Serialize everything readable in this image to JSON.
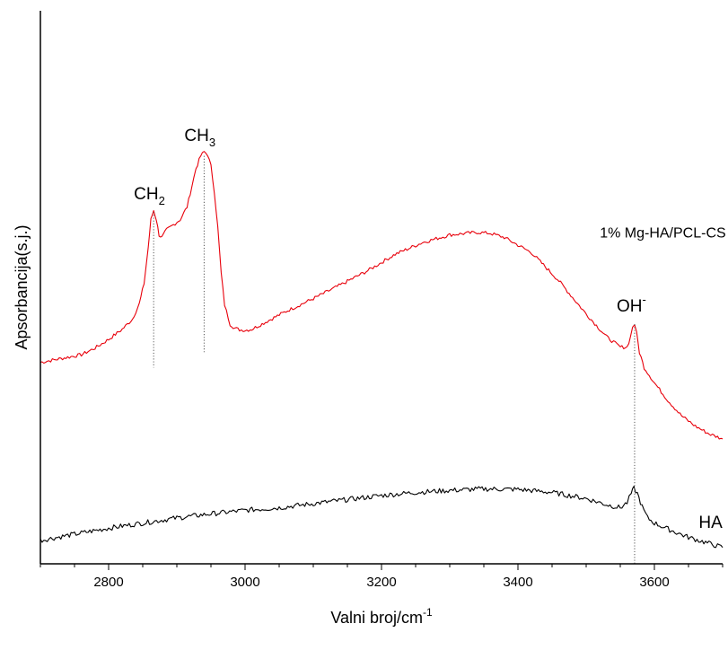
{
  "chart_data": {
    "type": "line",
    "xlabel": {
      "base": "Valni broj/cm",
      "sup": "-1"
    },
    "ylabel": "Apsorbancija(s.j.)",
    "xlim": [
      2700,
      3700
    ],
    "ylim": [
      0,
      1
    ],
    "x_ticks": [
      2800,
      3000,
      3200,
      3400,
      3600
    ],
    "x_tick_labels": [
      "2800",
      "3000",
      "3200",
      "3400",
      "3600"
    ],
    "y_tick_labels_shown": false,
    "grid": false,
    "series": [
      {
        "name": "1% Mg-HA/PCL-CS",
        "color": "#e8000b",
        "x": [
          2700,
          2720,
          2740,
          2760,
          2780,
          2800,
          2820,
          2835,
          2845,
          2852,
          2858,
          2862,
          2866,
          2870,
          2874,
          2878,
          2885,
          2895,
          2905,
          2915,
          2922,
          2928,
          2935,
          2940,
          2945,
          2950,
          2955,
          2960,
          2965,
          2970,
          2978,
          2985,
          2992,
          3000,
          3010,
          3030,
          3060,
          3100,
          3140,
          3180,
          3220,
          3260,
          3300,
          3340,
          3360,
          3380,
          3420,
          3460,
          3500,
          3530,
          3550,
          3560,
          3565,
          3568,
          3571,
          3574,
          3578,
          3585,
          3600,
          3620,
          3640,
          3660,
          3680,
          3700
        ],
        "y": [
          0.395,
          0.4,
          0.405,
          0.41,
          0.423,
          0.44,
          0.46,
          0.48,
          0.51,
          0.55,
          0.62,
          0.675,
          0.693,
          0.675,
          0.645,
          0.64,
          0.655,
          0.665,
          0.675,
          0.7,
          0.74,
          0.775,
          0.8,
          0.808,
          0.803,
          0.78,
          0.73,
          0.66,
          0.57,
          0.508,
          0.47,
          0.462,
          0.459,
          0.458,
          0.46,
          0.474,
          0.495,
          0.52,
          0.547,
          0.575,
          0.607,
          0.63,
          0.645,
          0.65,
          0.648,
          0.64,
          0.61,
          0.555,
          0.49,
          0.445,
          0.425,
          0.425,
          0.445,
          0.465,
          0.47,
          0.452,
          0.415,
          0.385,
          0.355,
          0.32,
          0.29,
          0.27,
          0.255,
          0.245
        ]
      },
      {
        "name": "HA",
        "color": "#000000",
        "x": [
          2700,
          2750,
          2800,
          2850,
          2900,
          2950,
          3000,
          3050,
          3100,
          3150,
          3200,
          3250,
          3300,
          3350,
          3400,
          3450,
          3500,
          3530,
          3550,
          3560,
          3566,
          3570,
          3575,
          3582,
          3590,
          3600,
          3620,
          3650,
          3680,
          3700
        ],
        "y": [
          0.046,
          0.058,
          0.07,
          0.08,
          0.09,
          0.098,
          0.105,
          0.11,
          0.118,
          0.126,
          0.134,
          0.14,
          0.144,
          0.147,
          0.146,
          0.14,
          0.128,
          0.116,
          0.11,
          0.12,
          0.138,
          0.148,
          0.138,
          0.112,
          0.09,
          0.08,
          0.068,
          0.052,
          0.04,
          0.032
        ]
      }
    ],
    "annotations": [
      {
        "base": "CH",
        "sub": "2",
        "x": 2866,
        "y": 0.69
      },
      {
        "base": "CH",
        "sub": "3",
        "x": 2940,
        "y": 0.805
      },
      {
        "base": "OH",
        "sup": "-",
        "x": 3571,
        "y": 0.47
      }
    ],
    "series_labels": [
      {
        "text": "1% Mg-HA/PCL-CS",
        "x": 3520,
        "y": 0.64
      },
      {
        "text": "HA",
        "x": 3665,
        "y": 0.07
      }
    ],
    "guide_lines": [
      {
        "x": 2866,
        "y_top": 0.69,
        "y_bottom": 0.385
      },
      {
        "x": 2940,
        "y_top": 0.8,
        "y_bottom": 0.415
      },
      {
        "x": 3571,
        "y_top": 0.47,
        "y_bottom": 0.0
      }
    ]
  }
}
